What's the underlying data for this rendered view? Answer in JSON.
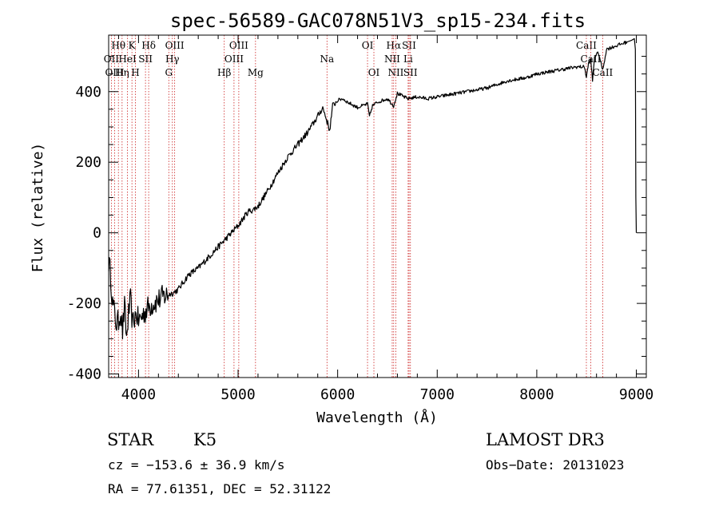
{
  "chart_data": {
    "type": "line",
    "title": "spec-56589-GAC078N51V3_sp15-234.fits",
    "xlabel": "Wavelength (Å)",
    "ylabel": "Flux (relative)",
    "xlim": [
      3700,
      9100
    ],
    "ylim": [
      -410,
      560
    ],
    "xticks": [
      4000,
      5000,
      6000,
      7000,
      8000,
      9000
    ],
    "xtick_labels": [
      "4000",
      "5000",
      "6000",
      "7000",
      "8000",
      "9000"
    ],
    "yticks": [
      -400,
      -200,
      0,
      200,
      400
    ],
    "ytick_labels": [
      "-400",
      "-200",
      "0",
      "200",
      "400"
    ],
    "series": [
      {
        "name": "flux",
        "x": [
          3700,
          3720,
          3740,
          3760,
          3780,
          3800,
          3820,
          3840,
          3860,
          3880,
          3900,
          3920,
          3940,
          3960,
          3980,
          4000,
          4050,
          4100,
          4150,
          4200,
          4250,
          4300,
          4350,
          4400,
          4450,
          4500,
          4600,
          4700,
          4800,
          4900,
          5000,
          5050,
          5100,
          5150,
          5200,
          5300,
          5400,
          5500,
          5600,
          5700,
          5800,
          5850,
          5900,
          5920,
          5950,
          6000,
          6050,
          6100,
          6200,
          6300,
          6320,
          6350,
          6400,
          6500,
          6562,
          6600,
          6700,
          6800,
          6900,
          7000,
          7100,
          7200,
          7300,
          7400,
          7500,
          7600,
          7700,
          7800,
          7900,
          8000,
          8100,
          8200,
          8300,
          8400,
          8480,
          8498,
          8520,
          8542,
          8560,
          8580,
          8600,
          8620,
          8662,
          8700,
          8800,
          8900,
          8950,
          8980,
          8990,
          8995,
          9000
        ],
        "values": [
          -80,
          -120,
          -200,
          -230,
          -260,
          -250,
          -220,
          -280,
          -210,
          -300,
          -230,
          -190,
          -260,
          -240,
          -230,
          -250,
          -230,
          -210,
          -200,
          -190,
          -180,
          -175,
          -170,
          -160,
          -140,
          -120,
          -100,
          -70,
          -40,
          -10,
          20,
          40,
          60,
          65,
          75,
          120,
          170,
          215,
          250,
          285,
          330,
          355,
          310,
          290,
          360,
          375,
          380,
          370,
          355,
          365,
          330,
          360,
          370,
          380,
          360,
          395,
          380,
          385,
          380,
          385,
          390,
          395,
          400,
          405,
          410,
          420,
          430,
          435,
          440,
          450,
          455,
          460,
          465,
          470,
          470,
          440,
          480,
          490,
          430,
          500,
          505,
          510,
          460,
          520,
          530,
          540,
          545,
          550,
          520,
          100,
          0
        ]
      }
    ],
    "lines": [
      {
        "label": "Hθ",
        "x": 3798,
        "row": 1
      },
      {
        "label": "OII",
        "x": 3727,
        "row": 2
      },
      {
        "label": "OIII",
        "x": 3760,
        "row": 3
      },
      {
        "label": "Hη",
        "x": 3835,
        "row": 3
      },
      {
        "label": "K",
        "x": 3934,
        "row": 1
      },
      {
        "label": "HeI",
        "x": 3889,
        "row": 2
      },
      {
        "label": "SII",
        "x": 4070,
        "row": 2
      },
      {
        "label": "H",
        "x": 3969,
        "row": 3
      },
      {
        "label": "Hδ",
        "x": 4102,
        "row": 1
      },
      {
        "label": "OIII",
        "x": 4363,
        "row": 1
      },
      {
        "label": "Hγ",
        "x": 4340,
        "row": 2
      },
      {
        "label": "G",
        "x": 4304,
        "row": 3
      },
      {
        "label": "Hβ",
        "x": 4861,
        "row": 3
      },
      {
        "label": "OIII",
        "x": 5007,
        "row": 1
      },
      {
        "label": "OIII",
        "x": 4959,
        "row": 2
      },
      {
        "label": "Mg",
        "x": 5175,
        "row": 3
      },
      {
        "label": "Na",
        "x": 5893,
        "row": 2
      },
      {
        "label": "OI",
        "x": 6300,
        "row": 1
      },
      {
        "label": "OI",
        "x": 6364,
        "row": 3
      },
      {
        "label": "Hα",
        "x": 6563,
        "row": 1
      },
      {
        "label": "NII",
        "x": 6548,
        "row": 2
      },
      {
        "label": "NII",
        "x": 6584,
        "row": 3
      },
      {
        "label": "SII",
        "x": 6717,
        "row": 1
      },
      {
        "label": "Li",
        "x": 6708,
        "row": 2
      },
      {
        "label": "SII",
        "x": 6731,
        "row": 3
      },
      {
        "label": "CaII",
        "x": 8498,
        "row": 1
      },
      {
        "label": "CaII",
        "x": 8542,
        "row": 2
      },
      {
        "label": "CaII",
        "x": 8662,
        "row": 3
      }
    ]
  },
  "info": {
    "object_type": "STAR",
    "subclass": "K5",
    "survey": "LAMOST DR3",
    "cz": "cz = −153.6 ± 36.9 km/s",
    "obs_date": "Obs−Date: 20131023",
    "radec": "RA =  77.61351, DEC =  52.31122"
  }
}
